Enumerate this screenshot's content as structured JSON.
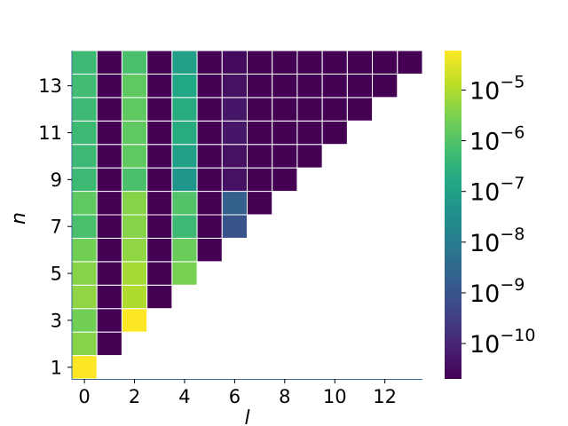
{
  "chart_data": {
    "type": "heatmap",
    "title": "",
    "xlabel": "l",
    "ylabel": "n",
    "x_ticks": [
      "0",
      "2",
      "4",
      "6",
      "8",
      "10",
      "12"
    ],
    "y_ticks": [
      "1",
      "3",
      "5",
      "7",
      "9",
      "11",
      "13"
    ],
    "x_range": [
      0,
      13
    ],
    "y_range": [
      1,
      14
    ],
    "scale": "log",
    "colormap": "viridis",
    "color_range": [
      2e-11,
      6e-05
    ],
    "colorbar_ticks": [
      {
        "base": "10",
        "exp": "−5",
        "value": 1e-05
      },
      {
        "base": "10",
        "exp": "−6",
        "value": 1e-06
      },
      {
        "base": "10",
        "exp": "−7",
        "value": 1e-07
      },
      {
        "base": "10",
        "exp": "−8",
        "value": 1e-08
      },
      {
        "base": "10",
        "exp": "−9",
        "value": 1e-09
      },
      {
        "base": "10",
        "exp": "−10",
        "value": 1e-10
      }
    ],
    "grid": false,
    "note": "cells exist only for l < n; rows listed by n",
    "rows": [
      {
        "n": 1,
        "values": [
          6e-05
        ]
      },
      {
        "n": 2,
        "values": [
          4e-06,
          2e-11
        ]
      },
      {
        "n": 3,
        "values": [
          2.5e-06,
          2e-11,
          6e-05
        ]
      },
      {
        "n": 4,
        "values": [
          5e-06,
          2e-11,
          1e-05,
          2e-11
        ]
      },
      {
        "n": 5,
        "values": [
          4e-06,
          2e-11,
          8e-06,
          2e-11,
          3e-06
        ]
      },
      {
        "n": 6,
        "values": [
          2.5e-06,
          2e-11,
          5e-06,
          2e-11,
          2e-06,
          2e-11
        ]
      },
      {
        "n": 7,
        "values": [
          8e-07,
          2e-11,
          4e-06,
          2e-11,
          5e-07,
          2e-11,
          1e-09
        ]
      },
      {
        "n": 8,
        "values": [
          1.5e-06,
          2e-11,
          4e-06,
          2e-11,
          1e-06,
          2e-11,
          2e-09,
          2e-11
        ]
      },
      {
        "n": 9,
        "values": [
          5e-07,
          2e-11,
          8e-07,
          2e-11,
          5e-08,
          2e-11,
          4e-11,
          2e-11,
          2e-11
        ]
      },
      {
        "n": 10,
        "values": [
          5e-07,
          2e-11,
          1.5e-06,
          2e-11,
          1e-07,
          2e-11,
          4e-11,
          2e-11,
          2e-11,
          2e-11
        ]
      },
      {
        "n": 11,
        "values": [
          5e-07,
          2e-11,
          1.5e-06,
          2e-11,
          2e-07,
          2e-11,
          5e-11,
          2e-11,
          2e-11,
          2e-11,
          2e-11
        ]
      },
      {
        "n": 12,
        "values": [
          5e-07,
          2e-11,
          1.5e-06,
          2e-11,
          2e-07,
          2e-11,
          5e-11,
          2e-11,
          2e-11,
          2e-11,
          2e-11,
          2e-11
        ]
      },
      {
        "n": 13,
        "values": [
          6e-07,
          2e-11,
          1.5e-06,
          2e-11,
          1.5e-07,
          2e-11,
          4e-11,
          2e-11,
          2e-11,
          2e-11,
          2e-11,
          2e-11,
          2e-11
        ]
      },
      {
        "n": 14,
        "values": [
          5e-07,
          2e-11,
          8e-07,
          2e-11,
          1e-07,
          2e-11,
          3e-11,
          2e-11,
          2e-11,
          2e-11,
          2e-11,
          2e-11,
          2e-11,
          2e-11
        ]
      }
    ]
  }
}
